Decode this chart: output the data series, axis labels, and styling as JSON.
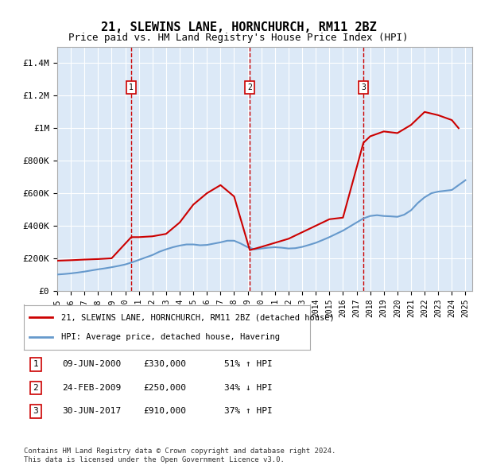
{
  "title": "21, SLEWINS LANE, HORNCHURCH, RM11 2BZ",
  "subtitle": "Price paid vs. HM Land Registry's House Price Index (HPI)",
  "ylabel": "",
  "xlabel": "",
  "ylim": [
    0,
    1500000
  ],
  "yticks": [
    0,
    200000,
    400000,
    600000,
    800000,
    1000000,
    1200000,
    1400000
  ],
  "ytick_labels": [
    "£0",
    "£200K",
    "£400K",
    "£600K",
    "£800K",
    "£1M",
    "£1.2M",
    "£1.4M"
  ],
  "xlim_start": 1995.0,
  "xlim_end": 2025.5,
  "background_color": "#dce9f7",
  "plot_bg_color": "#dce9f7",
  "grid_color": "#ffffff",
  "sale_dates": [
    2000.44,
    2009.15,
    2017.5
  ],
  "sale_prices": [
    330000,
    250000,
    910000
  ],
  "sale_labels": [
    "1",
    "2",
    "3"
  ],
  "legend_entries": [
    "21, SLEWINS LANE, HORNCHURCH, RM11 2BZ (detached house)",
    "HPI: Average price, detached house, Havering"
  ],
  "table_rows": [
    [
      "1",
      "09-JUN-2000",
      "£330,000",
      "51% ↑ HPI"
    ],
    [
      "2",
      "24-FEB-2009",
      "£250,000",
      "34% ↓ HPI"
    ],
    [
      "3",
      "30-JUN-2017",
      "£910,000",
      "37% ↑ HPI"
    ]
  ],
  "footer": "Contains HM Land Registry data © Crown copyright and database right 2024.\nThis data is licensed under the Open Government Licence v3.0.",
  "red_line_color": "#cc0000",
  "blue_line_color": "#6699cc",
  "hpi_x": [
    1995,
    1995.5,
    1996,
    1996.5,
    1997,
    1997.5,
    1998,
    1998.5,
    1999,
    1999.5,
    2000,
    2000.5,
    2001,
    2001.5,
    2002,
    2002.5,
    2003,
    2003.5,
    2004,
    2004.5,
    2005,
    2005.5,
    2006,
    2006.5,
    2007,
    2007.5,
    2008,
    2008.5,
    2009,
    2009.5,
    2010,
    2010.5,
    2011,
    2011.5,
    2012,
    2012.5,
    2013,
    2013.5,
    2014,
    2014.5,
    2015,
    2015.5,
    2016,
    2016.5,
    2017,
    2017.5,
    2018,
    2018.5,
    2019,
    2019.5,
    2020,
    2020.5,
    2021,
    2021.5,
    2022,
    2022.5,
    2023,
    2023.5,
    2024,
    2024.5,
    2025
  ],
  "hpi_y": [
    100000,
    103000,
    107000,
    112000,
    118000,
    125000,
    132000,
    138000,
    145000,
    153000,
    162000,
    175000,
    190000,
    205000,
    220000,
    240000,
    255000,
    268000,
    278000,
    285000,
    285000,
    280000,
    282000,
    290000,
    298000,
    308000,
    308000,
    290000,
    268000,
    255000,
    260000,
    265000,
    268000,
    265000,
    260000,
    262000,
    270000,
    282000,
    295000,
    312000,
    330000,
    350000,
    370000,
    395000,
    420000,
    445000,
    460000,
    465000,
    460000,
    458000,
    455000,
    468000,
    495000,
    540000,
    575000,
    600000,
    610000,
    615000,
    620000,
    650000,
    680000
  ],
  "price_line_x": [
    1995,
    1996,
    1997,
    1998,
    1999,
    2000.44,
    2001,
    2002,
    2003,
    2004,
    2005,
    2006,
    2007,
    2008,
    2009.15,
    2010,
    2011,
    2012,
    2013,
    2014,
    2015,
    2016,
    2017.5,
    2018,
    2019,
    2020,
    2021,
    2022,
    2023,
    2024,
    2024.5
  ],
  "price_line_y": [
    185000,
    188000,
    192000,
    195000,
    200000,
    330000,
    330000,
    335000,
    350000,
    420000,
    530000,
    600000,
    650000,
    580000,
    250000,
    270000,
    295000,
    320000,
    360000,
    400000,
    440000,
    450000,
    910000,
    950000,
    980000,
    970000,
    1020000,
    1100000,
    1080000,
    1050000,
    1000000
  ]
}
